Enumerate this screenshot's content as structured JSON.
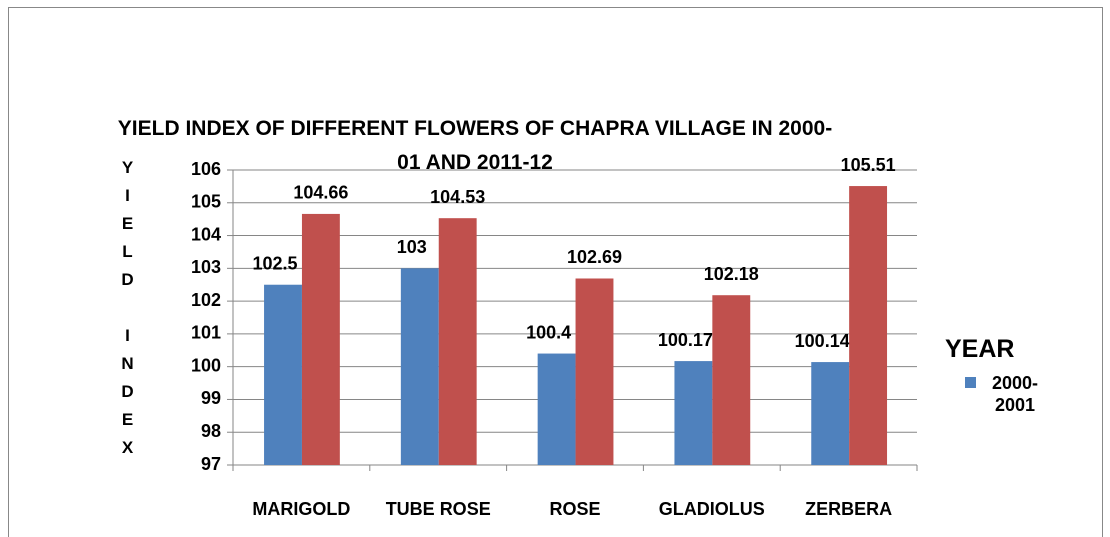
{
  "chart_data": {
    "type": "bar",
    "title": "YIELD INDEX OF DIFFERENT FLOWERS OF CHAPRA VILLAGE IN 2000-01 AND 2011-12",
    "y_label": "YIELD INDEX",
    "legend_title": "YEAR",
    "categories": [
      "MARIGOLD",
      "TUBE ROSE",
      "ROSE",
      "GLADIOLUS",
      "ZERBERA"
    ],
    "series": [
      {
        "name": "2000-2001",
        "color": "#4f81bd",
        "values": [
          102.5,
          103,
          100.4,
          100.17,
          100.14
        ]
      },
      {
        "color": "#c0504d",
        "values": [
          104.66,
          104.53,
          102.69,
          102.18,
          105.51
        ]
      }
    ],
    "ylim": [
      97,
      106
    ],
    "yticks": [
      97,
      98,
      99,
      100,
      101,
      102,
      103,
      104,
      105,
      106
    ],
    "grid": true
  }
}
